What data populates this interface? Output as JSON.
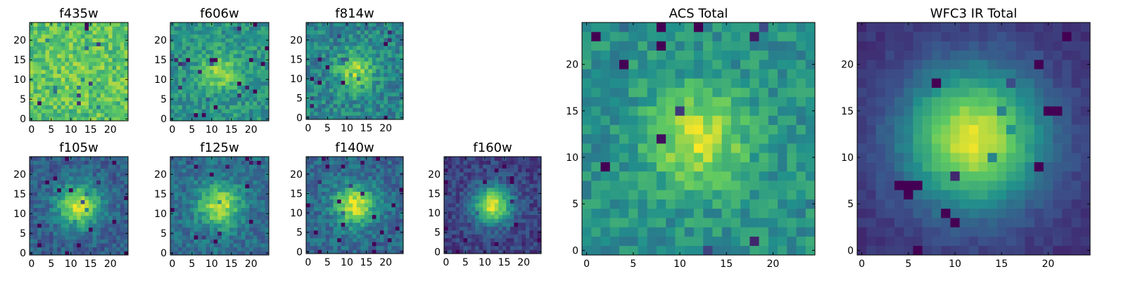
{
  "figure": {
    "colormap": "viridis",
    "colormap_stops": [
      "#440154",
      "#3b528b",
      "#21918c",
      "#5ec962",
      "#fde725"
    ]
  },
  "chart_data": [
    {
      "type": "heatmap",
      "title": "f435w",
      "grid": false,
      "xlim": [
        -0.5,
        24.5
      ],
      "ylim": [
        -0.5,
        24.5
      ],
      "x_ticks": [
        0,
        5,
        10,
        15,
        20
      ],
      "y_ticks": [
        0,
        5,
        10,
        15,
        20
      ],
      "image_size": [
        25,
        25
      ],
      "centroid": [
        12,
        12
      ],
      "source_sigma": 4.0,
      "peak_amplitude": 0.05,
      "noise_level": 0.16,
      "background_level": 0.72,
      "seed": 11
    },
    {
      "type": "heatmap",
      "title": "f606w",
      "grid": false,
      "xlim": [
        -0.5,
        24.5
      ],
      "ylim": [
        -0.5,
        24.5
      ],
      "x_ticks": [
        0,
        5,
        10,
        15,
        20
      ],
      "y_ticks": [
        0,
        5,
        10,
        15,
        20
      ],
      "image_size": [
        25,
        25
      ],
      "centroid": [
        12,
        12
      ],
      "source_sigma": 3.2,
      "peak_amplitude": 0.32,
      "noise_level": 0.14,
      "background_level": 0.52,
      "seed": 23
    },
    {
      "type": "heatmap",
      "title": "f814w",
      "grid": false,
      "xlim": [
        -0.5,
        24.5
      ],
      "ylim": [
        -0.5,
        24.5
      ],
      "x_ticks": [
        0,
        5,
        10,
        15,
        20
      ],
      "y_ticks": [
        0,
        5,
        10,
        15,
        20
      ],
      "image_size": [
        25,
        25
      ],
      "centroid": [
        12,
        12
      ],
      "source_sigma": 3.3,
      "peak_amplitude": 0.4,
      "noise_level": 0.15,
      "background_level": 0.45,
      "seed": 37
    },
    {
      "type": "heatmap",
      "title": "f105w",
      "grid": false,
      "xlim": [
        -0.5,
        24.5
      ],
      "ylim": [
        -0.5,
        24.5
      ],
      "x_ticks": [
        0,
        5,
        10,
        15,
        20
      ],
      "y_ticks": [
        0,
        5,
        10,
        15,
        20
      ],
      "image_size": [
        25,
        25
      ],
      "centroid": [
        12,
        12
      ],
      "source_sigma": 3.8,
      "peak_amplitude": 0.62,
      "noise_level": 0.11,
      "background_level": 0.3,
      "seed": 41
    },
    {
      "type": "heatmap",
      "title": "f125w",
      "grid": false,
      "xlim": [
        -0.5,
        24.5
      ],
      "ylim": [
        -0.5,
        24.5
      ],
      "x_ticks": [
        0,
        5,
        10,
        15,
        20
      ],
      "y_ticks": [
        0,
        5,
        10,
        15,
        20
      ],
      "image_size": [
        25,
        25
      ],
      "centroid": [
        12,
        12
      ],
      "source_sigma": 3.7,
      "peak_amplitude": 0.55,
      "noise_level": 0.12,
      "background_level": 0.36,
      "seed": 53
    },
    {
      "type": "heatmap",
      "title": "f140w",
      "grid": false,
      "xlim": [
        -0.5,
        24.5
      ],
      "ylim": [
        -0.5,
        24.5
      ],
      "x_ticks": [
        0,
        5,
        10,
        15,
        20
      ],
      "y_ticks": [
        0,
        5,
        10,
        15,
        20
      ],
      "image_size": [
        25,
        25
      ],
      "centroid": [
        12,
        12
      ],
      "source_sigma": 3.6,
      "peak_amplitude": 0.6,
      "noise_level": 0.12,
      "background_level": 0.34,
      "seed": 67
    },
    {
      "type": "heatmap",
      "title": "f160w",
      "grid": false,
      "xlim": [
        -0.5,
        24.5
      ],
      "ylim": [
        -0.5,
        24.5
      ],
      "x_ticks": [
        0,
        5,
        10,
        15,
        20
      ],
      "y_ticks": [
        0,
        5,
        10,
        15,
        20
      ],
      "image_size": [
        25,
        25
      ],
      "centroid": [
        12,
        12
      ],
      "source_sigma": 3.4,
      "peak_amplitude": 0.75,
      "noise_level": 0.1,
      "background_level": 0.2,
      "seed": 79
    },
    {
      "type": "heatmap",
      "title": "ACS Total",
      "grid": false,
      "xlim": [
        -0.5,
        24.5
      ],
      "ylim": [
        -0.5,
        24.5
      ],
      "x_ticks": [
        0,
        5,
        10,
        15,
        20
      ],
      "y_ticks": [
        0,
        5,
        10,
        15,
        20
      ],
      "image_size": [
        25,
        25
      ],
      "centroid": [
        12,
        12
      ],
      "source_sigma": 3.8,
      "peak_amplitude": 0.4,
      "noise_level": 0.12,
      "background_level": 0.5,
      "seed": 97
    },
    {
      "type": "heatmap",
      "title": "WFC3 IR Total",
      "grid": false,
      "xlim": [
        -0.5,
        24.5
      ],
      "ylim": [
        -0.5,
        24.5
      ],
      "x_ticks": [
        0,
        5,
        10,
        15,
        20
      ],
      "y_ticks": [
        0,
        5,
        10,
        15,
        20
      ],
      "image_size": [
        25,
        25
      ],
      "centroid": [
        12,
        12
      ],
      "source_sigma": 5.2,
      "peak_amplitude": 0.8,
      "noise_level": 0.04,
      "background_level": 0.15,
      "seed": 101
    }
  ]
}
